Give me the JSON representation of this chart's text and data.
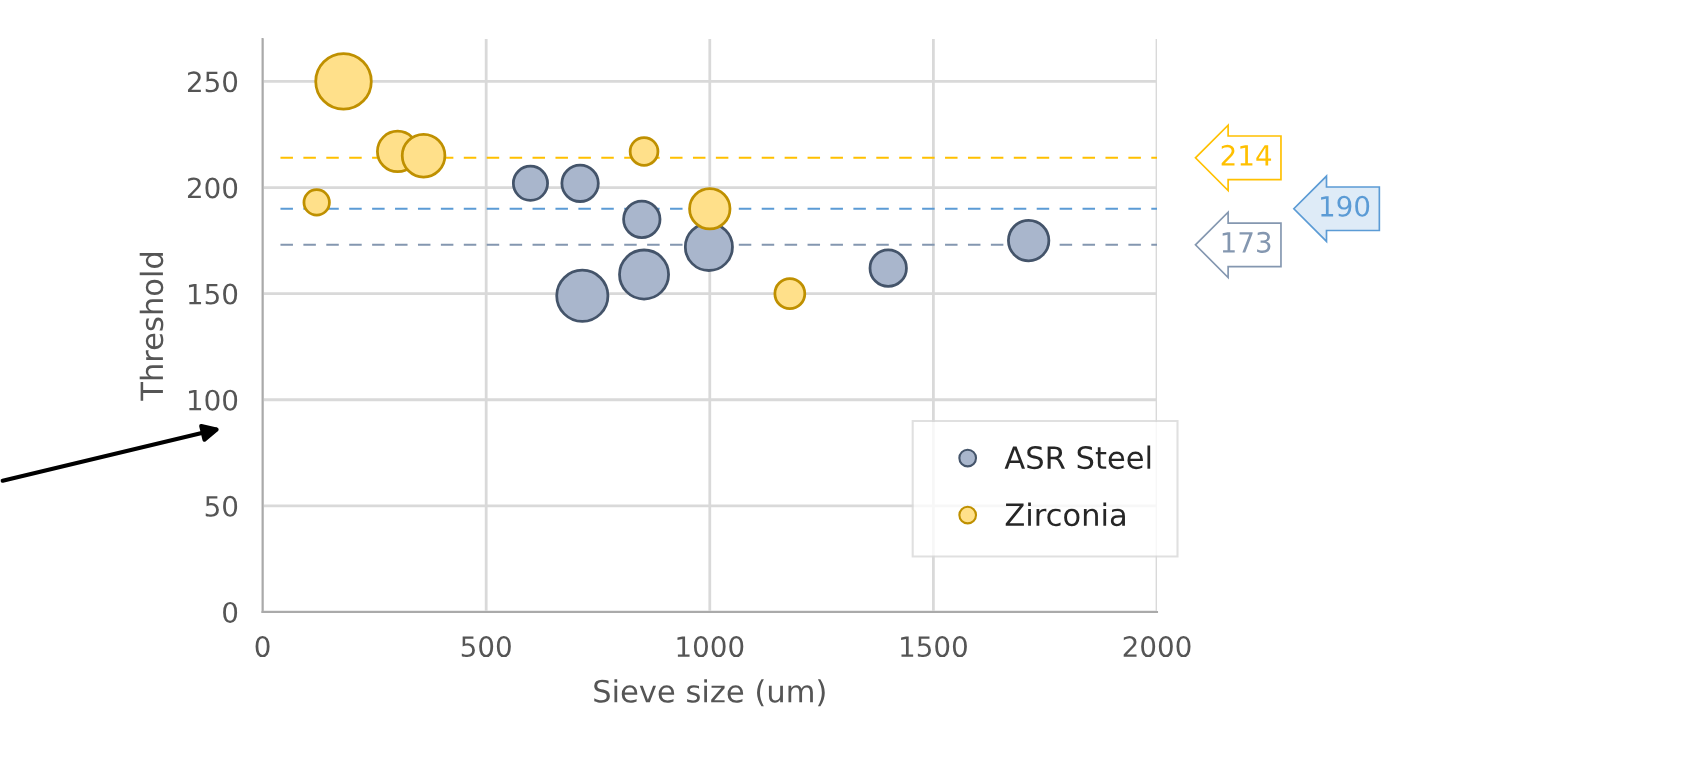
{
  "chart_data": {
    "type": "bubble",
    "xlabel": "Sieve size (um)",
    "ylabel": "Threshold",
    "xlim": [
      0,
      2000
    ],
    "xticks": [
      0,
      500,
      1000,
      1500,
      2000
    ],
    "ylim": [
      0,
      270
    ],
    "yticks": [
      0,
      50,
      100,
      150,
      200,
      250
    ],
    "grid": true,
    "legend": "bottom right",
    "series": [
      {
        "name": "ASR Steel",
        "color": "#a9b6cc",
        "x": [
          599,
          710,
          848,
          715,
          853,
          998,
          1399,
          1713
        ],
        "values": [
          202,
          202,
          185,
          149,
          159,
          172,
          162,
          175
        ],
        "sizes": [
          0.38,
          0.43,
          0.43,
          0.85,
          0.78,
          0.72,
          0.43,
          0.53
        ]
      },
      {
        "name": "Zirconia",
        "color": "#ffe08a",
        "x": [
          181,
          121,
          302,
          360,
          853,
          1000,
          1179
        ],
        "values": [
          250,
          193,
          217,
          215,
          217,
          190,
          150
        ],
        "sizes": [
          1,
          0.21,
          0.53,
          0.59,
          0.25,
          0.53,
          0.29
        ]
      }
    ],
    "ref_lines": [
      {
        "axis": "y",
        "value": 214,
        "label": "214",
        "color": "#ffc000",
        "line_style": "dashed"
      },
      {
        "axis": "y",
        "value": 190,
        "label": "190",
        "color": "#5b9bd5",
        "line_style": "dashed"
      },
      {
        "axis": "y",
        "value": 173,
        "label": "173",
        "color": "#8497b0",
        "line_style": "dashed"
      }
    ]
  }
}
